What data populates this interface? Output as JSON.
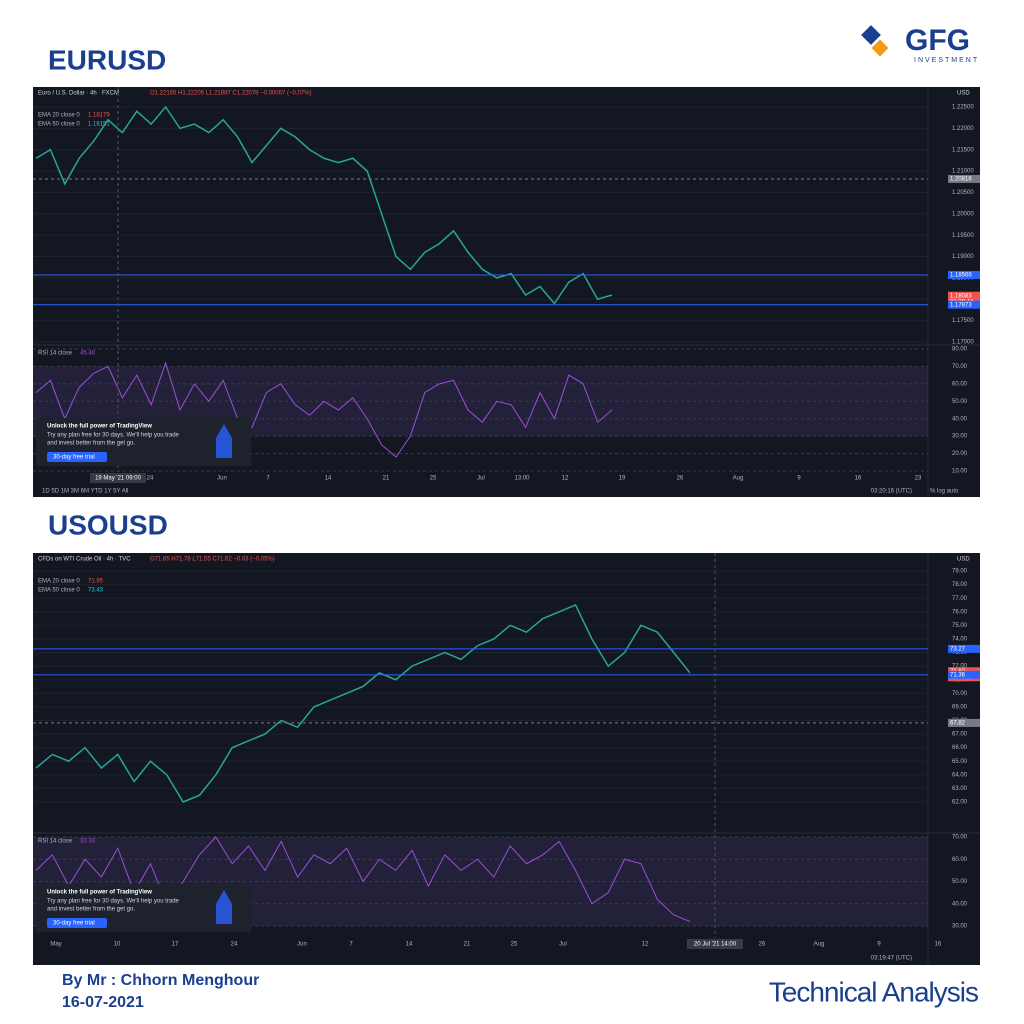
{
  "header": {
    "logo": "GFG",
    "logo_sub": "INVESTMENT"
  },
  "promo": {
    "title": "Unlock the full power of TradingView",
    "line1": "Try any plan free for 30 days. We'll help you trade",
    "line2": "and invest better from the get go.",
    "button": "30-day free trial"
  },
  "panels": [
    {
      "title": "EURUSD",
      "symbol": "Euro / U.S. Dollar · 4h · FXCM",
      "ohlc": "O1.22165 H1.22205 L1.21887 C1.22078 −0.00087 (−0.07%)",
      "ema20": "EMA 20 close 0",
      "ema20_value": "1.18179",
      "ema50": "EMA 50 close 0",
      "ema50_value": "1.18151",
      "currency": "USD",
      "yticks": [
        {
          "value": 1.225,
          "label": "1.22500"
        },
        {
          "value": 1.22,
          "label": "1.22000"
        },
        {
          "value": 1.215,
          "label": "1.21500"
        },
        {
          "value": 1.21,
          "label": "1.21000"
        },
        {
          "value": 1.205,
          "label": "1.20500"
        },
        {
          "value": 1.2,
          "label": "1.20000"
        },
        {
          "value": 1.195,
          "label": "1.19500"
        },
        {
          "value": 1.19,
          "label": "1.19000"
        },
        {
          "value": 1.185,
          "label": "1.18500"
        },
        {
          "value": 1.18,
          "label": "1.18000"
        },
        {
          "value": 1.175,
          "label": "1.17500"
        },
        {
          "value": 1.17,
          "label": "1.17000"
        }
      ],
      "levels": [
        {
          "value": 1.20816,
          "label": "1.20816",
          "color": "#787b86"
        },
        {
          "value": 1.18568,
          "label": "1.18568",
          "color": "#2962ff"
        },
        {
          "value": 1.18083,
          "label": "1.18083",
          "color": "#ef5350"
        },
        {
          "value": 1.17873,
          "label": "1.17873",
          "color": "#2962ff"
        }
      ],
      "countdown": "01:39:44",
      "closes": [
        1.213,
        1.215,
        1.207,
        1.213,
        1.217,
        1.222,
        1.219,
        1.224,
        1.221,
        1.225,
        1.22,
        1.221,
        1.219,
        1.222,
        1.218,
        1.212,
        1.216,
        1.22,
        1.218,
        1.215,
        1.213,
        1.212,
        1.213,
        1.21,
        1.2,
        1.19,
        1.187,
        1.191,
        1.193,
        1.196,
        1.191,
        1.187,
        1.185,
        1.186,
        1.181,
        1.183,
        1.179,
        1.184,
        1.186,
        1.18,
        1.181
      ],
      "rsi_label": "RSI 14 close",
      "rsi_value": "45.48",
      "rsi_ticks": [
        {
          "value": 80,
          "label": "80.00"
        },
        {
          "value": 70,
          "label": "70.00"
        },
        {
          "value": 60,
          "label": "60.00"
        },
        {
          "value": 50,
          "label": "50.00"
        },
        {
          "value": 40,
          "label": "40.00"
        },
        {
          "value": 30,
          "label": "30.00"
        },
        {
          "value": 20,
          "label": "20.00"
        },
        {
          "value": 10,
          "label": "10.00"
        }
      ],
      "rsi": [
        55,
        62,
        40,
        58,
        66,
        70,
        52,
        65,
        48,
        72,
        45,
        60,
        50,
        62,
        40,
        35,
        55,
        60,
        48,
        42,
        50,
        45,
        52,
        40,
        25,
        18,
        30,
        55,
        60,
        62,
        45,
        38,
        50,
        48,
        35,
        55,
        40,
        65,
        60,
        38,
        45
      ],
      "time_labels": [
        "24",
        "Jun",
        "7",
        "14",
        "21",
        "25",
        "Jul",
        "13:00",
        "12",
        "19",
        "26",
        "Aug",
        "9",
        "16",
        "23"
      ],
      "cursor_time": "19 May '21  09:00",
      "toolbar": "1D   5D   1M   3M   6M   YTD   1Y   5Y   All",
      "clock": "03:20:16 (UTC)",
      "scale_opts": "%   log   auto"
    },
    {
      "title": "USOUSD",
      "symbol": "CFDs on WTI Crude Oil · 4h · TVC",
      "ohlc": "O71.65 H71.78 L71.55 C71.62 −0.03 (−0.05%)",
      "ema20": "EMA 20 close 0",
      "ema20_value": "71.95",
      "ema50": "EMA 50 close 0",
      "ema50_value": "73.43",
      "currency": "USD",
      "yticks": [
        {
          "value": 79,
          "label": "79.00"
        },
        {
          "value": 78,
          "label": "78.00"
        },
        {
          "value": 77,
          "label": "77.00"
        },
        {
          "value": 76,
          "label": "76.00"
        },
        {
          "value": 75,
          "label": "75.00"
        },
        {
          "value": 74,
          "label": "74.00"
        },
        {
          "value": 73,
          "label": "73.00"
        },
        {
          "value": 72,
          "label": "72.00"
        },
        {
          "value": 71,
          "label": "71.00"
        },
        {
          "value": 70,
          "label": "70.00"
        },
        {
          "value": 69,
          "label": "69.00"
        },
        {
          "value": 68,
          "label": "68.00"
        },
        {
          "value": 67,
          "label": "67.00"
        },
        {
          "value": 66,
          "label": "66.00"
        },
        {
          "value": 65,
          "label": "65.00"
        },
        {
          "value": 64,
          "label": "64.00"
        },
        {
          "value": 63,
          "label": "63.00"
        },
        {
          "value": 62,
          "label": "62.00"
        }
      ],
      "levels": [
        {
          "value": 73.27,
          "label": "73.27",
          "color": "#2962ff"
        },
        {
          "value": 71.62,
          "label": "71.62",
          "color": "#ef5350"
        },
        {
          "value": 71.36,
          "label": "71.36",
          "color": "#2962ff"
        },
        {
          "value": 67.82,
          "label": "67.82",
          "color": "#787b86"
        }
      ],
      "countdown": "02:40:14",
      "closes": [
        64.5,
        65.5,
        65,
        66,
        64.5,
        65.5,
        63.5,
        65,
        64,
        62,
        62.5,
        64,
        66,
        66.5,
        67,
        68,
        67.5,
        69,
        69.5,
        70,
        70.5,
        71.5,
        71,
        72,
        72.5,
        73,
        72.5,
        73.5,
        74,
        75,
        74.5,
        75.5,
        76,
        76.5,
        74,
        72,
        73,
        75,
        74.5,
        73,
        71.5
      ],
      "rsi_label": "RSI 14 close",
      "rsi_value": "33.33",
      "rsi_ticks": [
        {
          "value": 70,
          "label": "70.00"
        },
        {
          "value": 60,
          "label": "60.00"
        },
        {
          "value": 50,
          "label": "50.00"
        },
        {
          "value": 40,
          "label": "40.00"
        },
        {
          "value": 30,
          "label": "30.00"
        }
      ],
      "rsi": [
        55,
        62,
        48,
        60,
        52,
        65,
        45,
        58,
        40,
        50,
        62,
        70,
        58,
        66,
        55,
        68,
        52,
        62,
        58,
        65,
        50,
        60,
        55,
        64,
        48,
        62,
        55,
        60,
        52,
        66,
        58,
        62,
        68,
        55,
        40,
        45,
        60,
        58,
        42,
        35,
        32
      ],
      "time_labels": [
        "May",
        "10",
        "17",
        "24",
        "Jun",
        "7",
        "14",
        "21",
        "25",
        "Jul",
        "12",
        "26",
        "Aug",
        "9",
        "16"
      ],
      "cursor_time": "20 Jul '21  14:00",
      "clock": "03:19:47 (UTC)"
    }
  ],
  "footer": {
    "author": "By Mr : Chhorn Menghour",
    "date": "16-07-2021",
    "caption": "Technical Analysis"
  }
}
